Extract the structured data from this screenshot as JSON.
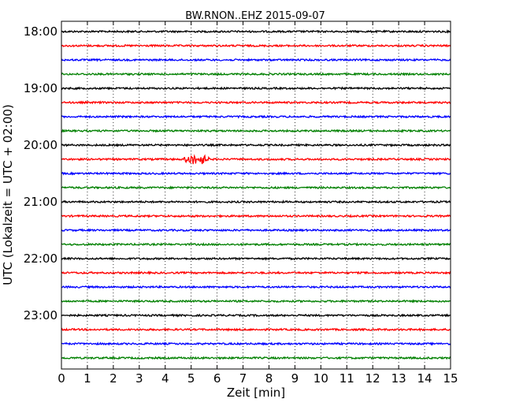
{
  "chart_data": {
    "type": "line",
    "title": "BW.RNON..EHZ 2015-09-07",
    "xlabel": "Zeit  [min]",
    "ylabel": "UTC (Lokalzeit = UTC + 02:00)",
    "xlim": [
      0,
      15
    ],
    "xticks": [
      "0",
      "1",
      "2",
      "3",
      "4",
      "5",
      "6",
      "7",
      "8",
      "9",
      "10",
      "11",
      "12",
      "13",
      "14",
      "15"
    ],
    "ytick_labels": [
      "18:00",
      "19:00",
      "20:00",
      "21:00",
      "22:00",
      "23:00"
    ],
    "grid": "vertical dotted at each minute",
    "trace_colors_cycle": [
      "#000000",
      "#ff0000",
      "#0000ff",
      "#008000"
    ],
    "traces": [
      {
        "start": "18:00",
        "event_minutes": [],
        "noise": "low"
      },
      {
        "start": "18:15",
        "event_minutes": []
      },
      {
        "start": "18:30",
        "event_minutes": []
      },
      {
        "start": "18:45",
        "event_minutes": []
      },
      {
        "start": "19:00",
        "event_minutes": []
      },
      {
        "start": "19:15",
        "event_minutes": []
      },
      {
        "start": "19:30",
        "event_minutes": []
      },
      {
        "start": "19:45",
        "event_minutes": []
      },
      {
        "start": "20:00",
        "event_minutes": []
      },
      {
        "start": "20:15",
        "event_minutes": [
          5.0,
          5.4
        ]
      },
      {
        "start": "20:30",
        "event_minutes": []
      },
      {
        "start": "20:45",
        "event_minutes": []
      },
      {
        "start": "21:00",
        "event_minutes": []
      },
      {
        "start": "21:15",
        "event_minutes": []
      },
      {
        "start": "21:30",
        "event_minutes": []
      },
      {
        "start": "21:45",
        "event_minutes": []
      },
      {
        "start": "22:00",
        "event_minutes": []
      },
      {
        "start": "22:15",
        "event_minutes": []
      },
      {
        "start": "22:30",
        "event_minutes": []
      },
      {
        "start": "22:45",
        "event_minutes": []
      },
      {
        "start": "23:00",
        "event_minutes": []
      },
      {
        "start": "23:15",
        "event_minutes": []
      },
      {
        "start": "23:30",
        "event_minutes": []
      },
      {
        "start": "23:45",
        "event_minutes": []
      }
    ]
  }
}
